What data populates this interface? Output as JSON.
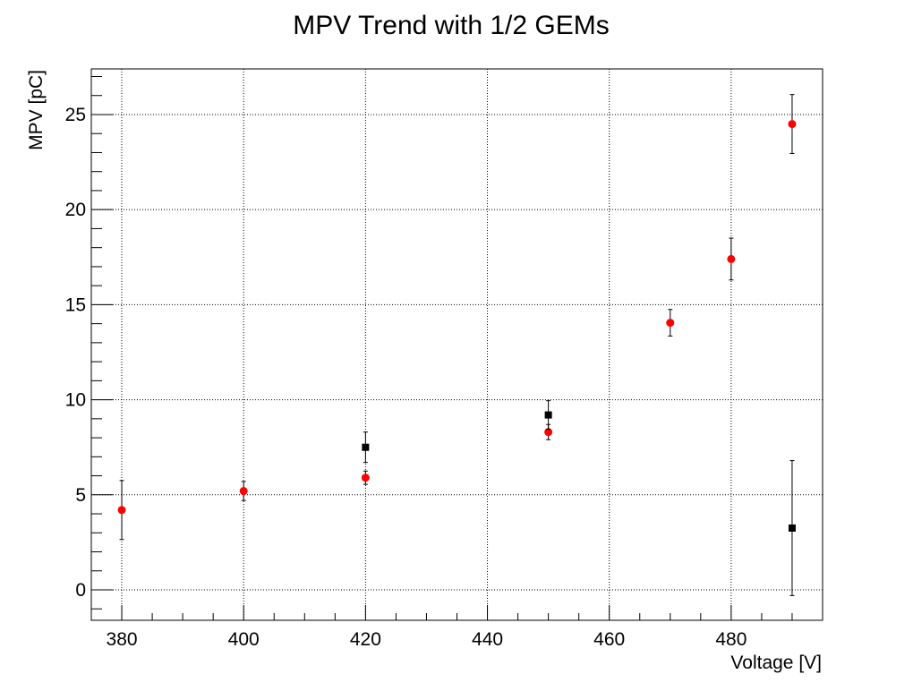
{
  "chart_data": {
    "type": "scatter",
    "title": "MPV Trend with 1/2 GEMs",
    "xlabel": "Voltage [V]",
    "ylabel": "MPV [pC]",
    "xlim": [
      375,
      495
    ],
    "ylim": [
      -1.6,
      27.4
    ],
    "grid": true,
    "legend": "none",
    "x_ticks": [
      380,
      400,
      420,
      440,
      460,
      480
    ],
    "y_ticks": [
      0,
      5,
      10,
      15,
      20,
      25
    ],
    "series": [
      {
        "marker": "circle",
        "color": "#ff0000",
        "points": [
          {
            "x": 380,
            "y": 4.2,
            "err": 1.55
          },
          {
            "x": 400,
            "y": 5.2,
            "err": 0.5
          },
          {
            "x": 420,
            "y": 5.9,
            "err": 0.35
          },
          {
            "x": 450,
            "y": 8.3,
            "err": 0.4
          },
          {
            "x": 470,
            "y": 14.05,
            "err": 0.7
          },
          {
            "x": 480,
            "y": 17.4,
            "err": 1.1
          },
          {
            "x": 490,
            "y": 24.5,
            "err": 1.55
          }
        ]
      },
      {
        "marker": "square",
        "color": "#000000",
        "points": [
          {
            "x": 420,
            "y": 7.5,
            "err": 0.8
          },
          {
            "x": 450,
            "y": 9.2,
            "err": 0.75
          },
          {
            "x": 490,
            "y": 3.25,
            "err": 3.55
          }
        ]
      }
    ]
  }
}
